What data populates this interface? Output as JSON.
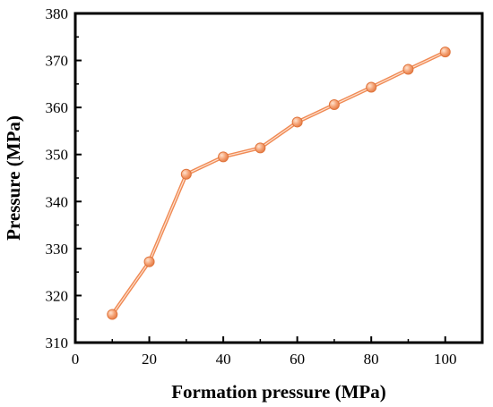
{
  "chart_data": {
    "type": "line",
    "title": "",
    "xlabel": "Formation pressure (MPa)",
    "ylabel": "Pressure (MPa)",
    "xlim": [
      0,
      110
    ],
    "ylim": [
      310,
      380
    ],
    "xticks": [
      0,
      20,
      40,
      60,
      80,
      100
    ],
    "yticks": [
      310,
      320,
      330,
      340,
      350,
      360,
      370,
      380
    ],
    "xtick_labels": [
      "0",
      "20",
      "40",
      "60",
      "80",
      "100"
    ],
    "ytick_labels": [
      "310",
      "320",
      "330",
      "340",
      "350",
      "360",
      "370",
      "380"
    ],
    "grid": false,
    "legend": false,
    "series": [
      {
        "color": "#f08a54",
        "marker": "circle",
        "x": [
          10,
          20,
          30,
          40,
          50,
          60,
          70,
          80,
          90,
          100
        ],
        "y": [
          316.0,
          327.2,
          345.8,
          349.5,
          351.4,
          356.9,
          360.6,
          364.3,
          368.1,
          371.8
        ]
      }
    ]
  }
}
